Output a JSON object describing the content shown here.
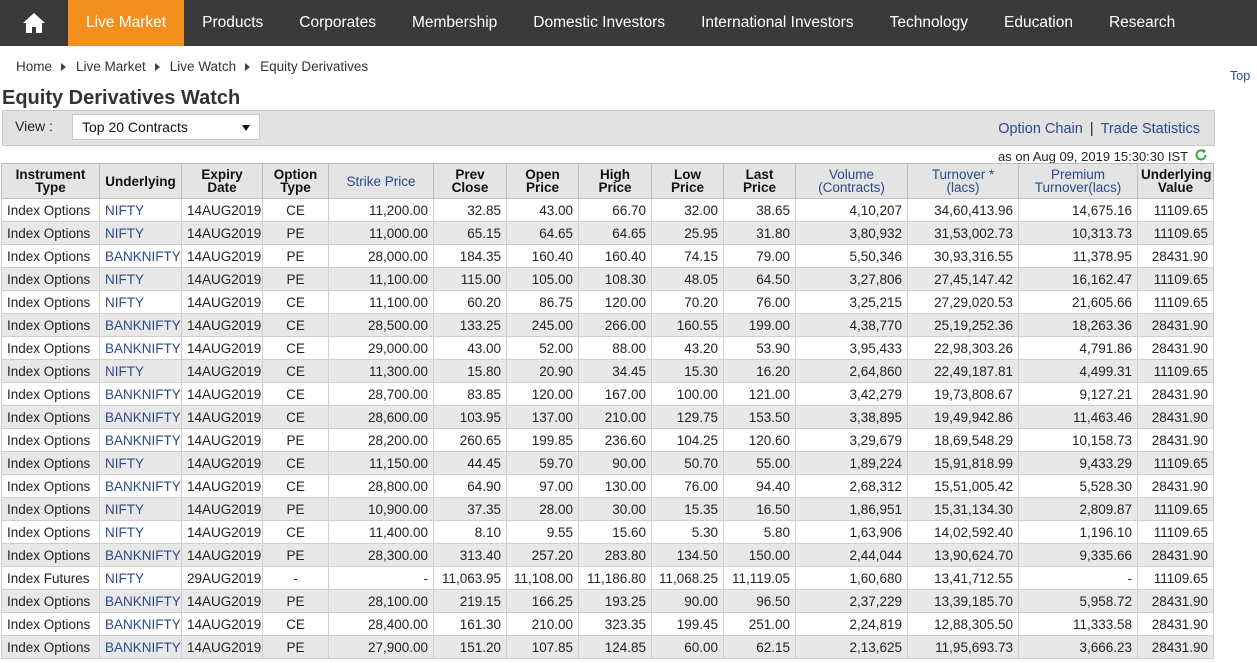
{
  "nav": {
    "items": [
      {
        "label": "Live Market",
        "active": true
      },
      {
        "label": "Products"
      },
      {
        "label": "Corporates"
      },
      {
        "label": "Membership"
      },
      {
        "label": "Domestic Investors"
      },
      {
        "label": "International Investors"
      },
      {
        "label": "Technology"
      },
      {
        "label": "Education"
      },
      {
        "label": "Research"
      }
    ],
    "accent_color": "#f3901d",
    "bar_color": "#3a3a3a",
    "home_icon": "home-icon"
  },
  "breadcrumb": [
    "Home",
    "Live Market",
    "Live Watch",
    "Equity Derivatives"
  ],
  "top_link": "Top",
  "page_title": "Equity Derivatives Watch",
  "view": {
    "label": "View :",
    "selected": "Top 20 Contracts"
  },
  "links": {
    "option_chain": "Option Chain",
    "separator": "|",
    "trade_statistics": "Trade Statistics"
  },
  "timestamp": "as on Aug 09, 2019 15:30:30 IST",
  "refresh_icon": "refresh-icon",
  "table": {
    "headers": [
      {
        "line1": "Instrument",
        "line2": "Type",
        "link": false
      },
      {
        "line1": "Underlying",
        "line2": "",
        "link": false
      },
      {
        "line1": "Expiry",
        "line2": "Date",
        "link": false
      },
      {
        "line1": "Option",
        "line2": "Type",
        "link": false
      },
      {
        "line1": "Strike Price",
        "line2": "",
        "link": true
      },
      {
        "line1": "Prev",
        "line2": "Close",
        "link": false
      },
      {
        "line1": "Open",
        "line2": "Price",
        "link": false
      },
      {
        "line1": "High",
        "line2": "Price",
        "link": false
      },
      {
        "line1": "Low",
        "line2": "Price",
        "link": false
      },
      {
        "line1": "Last",
        "line2": "Price",
        "link": false
      },
      {
        "line1": "Volume",
        "line2": "(Contracts)",
        "link": true
      },
      {
        "line1": "Turnover *",
        "line2": "(lacs)",
        "link": true
      },
      {
        "line1": "Premium",
        "line2": "Turnover(lacs)",
        "link": true
      },
      {
        "line1": "Underlying",
        "line2": "Value",
        "link": false
      }
    ],
    "rows": [
      [
        "Index Options",
        "NIFTY",
        "14AUG2019",
        "CE",
        "11,200.00",
        "32.85",
        "43.00",
        "66.70",
        "32.00",
        "38.65",
        "4,10,207",
        "34,60,413.96",
        "14,675.16",
        "11109.65"
      ],
      [
        "Index Options",
        "NIFTY",
        "14AUG2019",
        "PE",
        "11,000.00",
        "65.15",
        "64.65",
        "64.65",
        "25.95",
        "31.80",
        "3,80,932",
        "31,53,002.73",
        "10,313.73",
        "11109.65"
      ],
      [
        "Index Options",
        "BANKNIFTY",
        "14AUG2019",
        "PE",
        "28,000.00",
        "184.35",
        "160.40",
        "160.40",
        "74.15",
        "79.00",
        "5,50,346",
        "30,93,316.55",
        "11,378.95",
        "28431.90"
      ],
      [
        "Index Options",
        "NIFTY",
        "14AUG2019",
        "PE",
        "11,100.00",
        "115.00",
        "105.00",
        "108.30",
        "48.05",
        "64.50",
        "3,27,806",
        "27,45,147.42",
        "16,162.47",
        "11109.65"
      ],
      [
        "Index Options",
        "NIFTY",
        "14AUG2019",
        "CE",
        "11,100.00",
        "60.20",
        "86.75",
        "120.00",
        "70.20",
        "76.00",
        "3,25,215",
        "27,29,020.53",
        "21,605.66",
        "11109.65"
      ],
      [
        "Index Options",
        "BANKNIFTY",
        "14AUG2019",
        "CE",
        "28,500.00",
        "133.25",
        "245.00",
        "266.00",
        "160.55",
        "199.00",
        "4,38,770",
        "25,19,252.36",
        "18,263.36",
        "28431.90"
      ],
      [
        "Index Options",
        "BANKNIFTY",
        "14AUG2019",
        "CE",
        "29,000.00",
        "43.00",
        "52.00",
        "88.00",
        "43.20",
        "53.90",
        "3,95,433",
        "22,98,303.26",
        "4,791.86",
        "28431.90"
      ],
      [
        "Index Options",
        "NIFTY",
        "14AUG2019",
        "CE",
        "11,300.00",
        "15.80",
        "20.90",
        "34.45",
        "15.30",
        "16.20",
        "2,64,860",
        "22,49,187.81",
        "4,499.31",
        "11109.65"
      ],
      [
        "Index Options",
        "BANKNIFTY",
        "14AUG2019",
        "CE",
        "28,700.00",
        "83.85",
        "120.00",
        "167.00",
        "100.00",
        "121.00",
        "3,42,279",
        "19,73,808.67",
        "9,127.21",
        "28431.90"
      ],
      [
        "Index Options",
        "BANKNIFTY",
        "14AUG2019",
        "CE",
        "28,600.00",
        "103.95",
        "137.00",
        "210.00",
        "129.75",
        "153.50",
        "3,38,895",
        "19,49,942.86",
        "11,463.46",
        "28431.90"
      ],
      [
        "Index Options",
        "BANKNIFTY",
        "14AUG2019",
        "PE",
        "28,200.00",
        "260.65",
        "199.85",
        "236.60",
        "104.25",
        "120.60",
        "3,29,679",
        "18,69,548.29",
        "10,158.73",
        "28431.90"
      ],
      [
        "Index Options",
        "NIFTY",
        "14AUG2019",
        "CE",
        "11,150.00",
        "44.45",
        "59.70",
        "90.00",
        "50.70",
        "55.00",
        "1,89,224",
        "15,91,818.99",
        "9,433.29",
        "11109.65"
      ],
      [
        "Index Options",
        "BANKNIFTY",
        "14AUG2019",
        "CE",
        "28,800.00",
        "64.90",
        "97.00",
        "130.00",
        "76.00",
        "94.40",
        "2,68,312",
        "15,51,005.42",
        "5,528.30",
        "28431.90"
      ],
      [
        "Index Options",
        "NIFTY",
        "14AUG2019",
        "PE",
        "10,900.00",
        "37.35",
        "28.00",
        "30.00",
        "15.35",
        "16.50",
        "1,86,951",
        "15,31,134.30",
        "2,809.87",
        "11109.65"
      ],
      [
        "Index Options",
        "NIFTY",
        "14AUG2019",
        "CE",
        "11,400.00",
        "8.10",
        "9.55",
        "15.60",
        "5.30",
        "5.80",
        "1,63,906",
        "14,02,592.40",
        "1,196.10",
        "11109.65"
      ],
      [
        "Index Options",
        "BANKNIFTY",
        "14AUG2019",
        "PE",
        "28,300.00",
        "313.40",
        "257.20",
        "283.80",
        "134.50",
        "150.00",
        "2,44,044",
        "13,90,624.70",
        "9,335.66",
        "28431.90"
      ],
      [
        "Index Futures",
        "NIFTY",
        "29AUG2019",
        "-",
        "-",
        "11,063.95",
        "11,108.00",
        "11,186.80",
        "11,068.25",
        "11,119.05",
        "1,60,680",
        "13,41,712.55",
        "-",
        "11109.65"
      ],
      [
        "Index Options",
        "BANKNIFTY",
        "14AUG2019",
        "PE",
        "28,100.00",
        "219.15",
        "166.25",
        "193.25",
        "90.00",
        "96.50",
        "2,37,229",
        "13,39,185.70",
        "5,958.72",
        "28431.90"
      ],
      [
        "Index Options",
        "BANKNIFTY",
        "14AUG2019",
        "CE",
        "28,400.00",
        "161.30",
        "210.00",
        "323.35",
        "199.45",
        "251.00",
        "2,24,819",
        "12,88,305.50",
        "11,333.58",
        "28431.90"
      ],
      [
        "Index Options",
        "BANKNIFTY",
        "14AUG2019",
        "PE",
        "27,900.00",
        "151.20",
        "107.85",
        "124.85",
        "60.00",
        "62.15",
        "2,13,625",
        "11,95,693.73",
        "3,666.23",
        "28431.90"
      ]
    ]
  }
}
